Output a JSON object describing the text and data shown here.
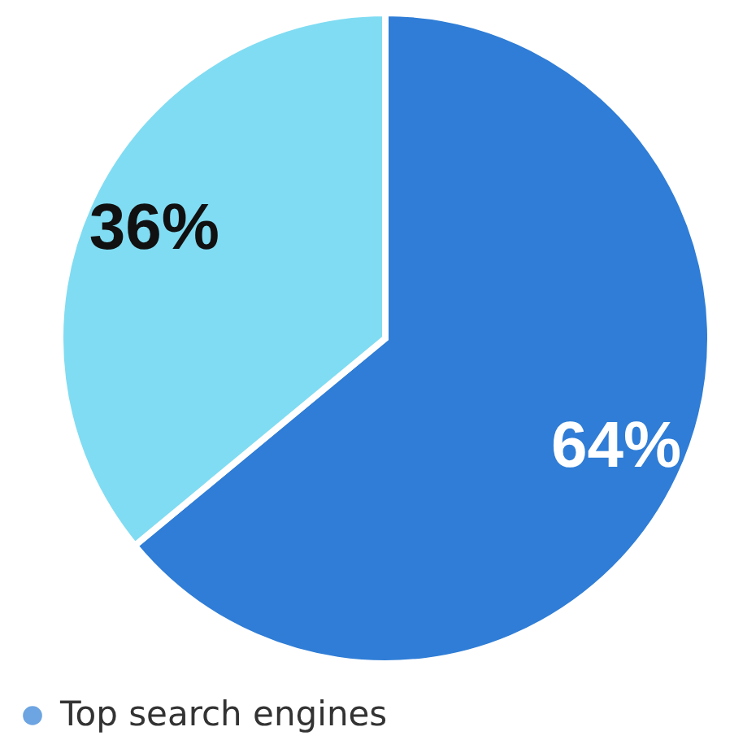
{
  "chart_data": {
    "type": "pie",
    "categories": [
      "Top search engines",
      null
    ],
    "values": [
      64,
      36
    ],
    "colors": [
      "#2f7dd6",
      "#80dcf2"
    ],
    "value_labels": [
      "64%",
      "36%"
    ],
    "legend": "bottom"
  }
}
